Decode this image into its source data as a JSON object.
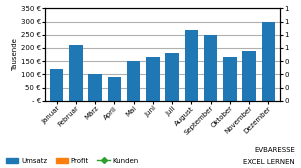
{
  "chart_data": {
    "type": "bar",
    "categories": [
      "Januar",
      "Februar",
      "März",
      "April",
      "Mai",
      "Juni",
      "Juli",
      "August",
      "September",
      "Oktober",
      "November",
      "Dezember"
    ],
    "series": [
      {
        "name": "Umsatz",
        "type": "bar",
        "values": [
          120,
          210,
          100,
          90,
          150,
          165,
          180,
          270,
          250,
          165,
          190,
          300
        ]
      },
      {
        "name": "Profit",
        "type": "bar",
        "values": [
          null,
          null,
          null,
          null,
          null,
          null,
          null,
          null,
          null,
          null,
          null,
          null
        ]
      },
      {
        "name": "Kunden",
        "type": "line",
        "marker": "diamond",
        "axis": "y2",
        "values": [
          null,
          null,
          null,
          null,
          null,
          null,
          null,
          null,
          null,
          null,
          null,
          null
        ]
      }
    ],
    "y_label": "Tausende",
    "ylim": [
      0,
      350
    ],
    "yticks": [
      {
        "value": 0,
        "label": "- €"
      },
      {
        "value": 50,
        "label": "50 €"
      },
      {
        "value": 100,
        "label": "100 €"
      },
      {
        "value": 150,
        "label": "150 €"
      },
      {
        "value": 200,
        "label": "200 €"
      },
      {
        "value": 250,
        "label": "250 €"
      },
      {
        "value": 300,
        "label": "300 €"
      },
      {
        "value": 350,
        "label": "350 €"
      }
    ],
    "y2lim": [
      0,
      1
    ],
    "y2ticks": [
      0,
      {
        "value": 0.14285714285714285,
        "label": "0"
      },
      {
        "value": 0.2857142857142857,
        "label": "0"
      },
      {
        "value": 0.42857142857142855,
        "label": "0"
      },
      {
        "value": 0.5714285714285714,
        "label": "1"
      },
      {
        "value": 0.7142857142857143,
        "label": "1"
      },
      {
        "value": 0.8571428571428571,
        "label": "1"
      },
      {
        "value": 1.0,
        "label": "1"
      }
    ],
    "grid": true,
    "legend": "lower left",
    "annotations": [
      "EVBARESSE",
      "EXCEL LERNEN"
    ]
  }
}
